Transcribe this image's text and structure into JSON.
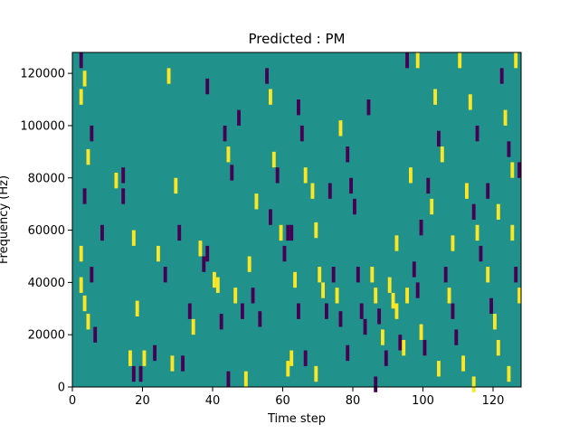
{
  "chart_data": {
    "type": "heatmap",
    "title": "Predicted : PM",
    "xlabel": "Time step",
    "ylabel": "Frequency (Hz)",
    "xlim": [
      0,
      128
    ],
    "ylim": [
      0,
      128000
    ],
    "xticks": [
      0,
      20,
      40,
      60,
      80,
      100,
      120
    ],
    "yticks": [
      0,
      20000,
      40000,
      60000,
      80000,
      100000,
      120000
    ],
    "background_value": 0,
    "colormap": {
      "-1": "#440154",
      "0": "#21918c",
      "1": "#fde725"
    },
    "cells": [
      [
        3,
        119000,
        1
      ],
      [
        2,
        112000,
        1
      ],
      [
        4,
        89000,
        1
      ],
      [
        3,
        74000,
        -1
      ],
      [
        2,
        52000,
        1
      ],
      [
        5,
        44000,
        -1
      ],
      [
        2,
        40000,
        1
      ],
      [
        3,
        33000,
        1
      ],
      [
        4,
        26000,
        1
      ],
      [
        6,
        21000,
        -1
      ],
      [
        2,
        126000,
        -1
      ],
      [
        5,
        98000,
        -1
      ],
      [
        8,
        60000,
        -1
      ],
      [
        12,
        80000,
        1
      ],
      [
        14,
        74000,
        -1
      ],
      [
        17,
        58000,
        1
      ],
      [
        18,
        31000,
        1
      ],
      [
        16,
        12000,
        1
      ],
      [
        17,
        6000,
        -1
      ],
      [
        14,
        82000,
        -1
      ],
      [
        24,
        52000,
        1
      ],
      [
        26,
        44000,
        -1
      ],
      [
        27,
        120000,
        1
      ],
      [
        29,
        78000,
        1
      ],
      [
        31,
        10000,
        -1
      ],
      [
        33,
        30000,
        -1
      ],
      [
        36,
        54000,
        1
      ],
      [
        37,
        48000,
        -1
      ],
      [
        38,
        52000,
        -1
      ],
      [
        40,
        42000,
        1
      ],
      [
        41,
        40000,
        1
      ],
      [
        42,
        26000,
        -1
      ],
      [
        43,
        98000,
        -1
      ],
      [
        44,
        90000,
        1
      ],
      [
        45,
        83000,
        -1
      ],
      [
        46,
        36000,
        1
      ],
      [
        48,
        30000,
        -1
      ],
      [
        50,
        48000,
        1
      ],
      [
        51,
        36000,
        -1
      ],
      [
        53,
        27000,
        -1
      ],
      [
        55,
        120000,
        -1
      ],
      [
        56,
        112000,
        1
      ],
      [
        57,
        88000,
        1
      ],
      [
        58,
        82000,
        -1
      ],
      [
        59,
        60000,
        1
      ],
      [
        60,
        52000,
        -1
      ],
      [
        61,
        8000,
        1
      ],
      [
        62,
        12000,
        1
      ],
      [
        61,
        60000,
        -1
      ],
      [
        62,
        60000,
        -1
      ],
      [
        63,
        42000,
        1
      ],
      [
        64,
        30000,
        -1
      ],
      [
        65,
        98000,
        -1
      ],
      [
        66,
        82000,
        1
      ],
      [
        68,
        76000,
        1
      ],
      [
        69,
        61000,
        1
      ],
      [
        70,
        44000,
        1
      ],
      [
        71,
        38000,
        1
      ],
      [
        72,
        30000,
        -1
      ],
      [
        73,
        76000,
        -1
      ],
      [
        74,
        44000,
        -1
      ],
      [
        75,
        36000,
        1
      ],
      [
        76,
        27000,
        -1
      ],
      [
        78,
        90000,
        -1
      ],
      [
        79,
        78000,
        -1
      ],
      [
        80,
        70000,
        -1
      ],
      [
        81,
        44000,
        -1
      ],
      [
        82,
        30000,
        -1
      ],
      [
        83,
        24000,
        -1
      ],
      [
        85,
        44000,
        1
      ],
      [
        86,
        36000,
        1
      ],
      [
        87,
        28000,
        -1
      ],
      [
        88,
        20000,
        1
      ],
      [
        89,
        12000,
        -1
      ],
      [
        90,
        40000,
        1
      ],
      [
        91,
        34000,
        1
      ],
      [
        92,
        30000,
        1
      ],
      [
        92,
        56000,
        1
      ],
      [
        93,
        18000,
        -1
      ],
      [
        95,
        36000,
        1
      ],
      [
        96,
        82000,
        1
      ],
      [
        97,
        46000,
        -1
      ],
      [
        98,
        38000,
        -1
      ],
      [
        99,
        22000,
        1
      ],
      [
        100,
        16000,
        -1
      ],
      [
        101,
        78000,
        -1
      ],
      [
        102,
        70000,
        1
      ],
      [
        103,
        112000,
        1
      ],
      [
        104,
        96000,
        -1
      ],
      [
        105,
        90000,
        1
      ],
      [
        106,
        44000,
        -1
      ],
      [
        107,
        36000,
        1
      ],
      [
        108,
        30000,
        -1
      ],
      [
        109,
        20000,
        -1
      ],
      [
        111,
        10000,
        1
      ],
      [
        112,
        76000,
        1
      ],
      [
        113,
        110000,
        1
      ],
      [
        114,
        68000,
        -1
      ],
      [
        115,
        60000,
        1
      ],
      [
        116,
        52000,
        -1
      ],
      [
        118,
        44000,
        1
      ],
      [
        119,
        32000,
        -1
      ],
      [
        120,
        26000,
        1
      ],
      [
        121,
        16000,
        1
      ],
      [
        122,
        120000,
        -1
      ],
      [
        123,
        104000,
        1
      ],
      [
        124,
        92000,
        -1
      ],
      [
        125,
        84000,
        1
      ],
      [
        126,
        44000,
        -1
      ],
      [
        127,
        36000,
        1
      ],
      [
        127,
        84000,
        -1
      ],
      [
        126,
        126000,
        1
      ],
      [
        110,
        126000,
        1
      ],
      [
        98,
        126000,
        1
      ],
      [
        95,
        126000,
        -1
      ],
      [
        38,
        116000,
        -1
      ],
      [
        47,
        104000,
        -1
      ],
      [
        19,
        6000,
        -1
      ],
      [
        20,
        12000,
        1
      ],
      [
        23,
        14000,
        -1
      ],
      [
        28,
        10000,
        1
      ],
      [
        34,
        24000,
        1
      ],
      [
        44,
        4000,
        -1
      ],
      [
        49,
        4000,
        1
      ],
      [
        66,
        12000,
        -1
      ],
      [
        69,
        6000,
        1
      ],
      [
        78,
        14000,
        -1
      ],
      [
        86,
        2000,
        -1
      ],
      [
        94,
        16000,
        1
      ],
      [
        104,
        8000,
        1
      ],
      [
        114,
        2000,
        1
      ],
      [
        124,
        6000,
        1
      ],
      [
        30,
        60000,
        -1
      ],
      [
        52,
        72000,
        1
      ],
      [
        56,
        66000,
        -1
      ],
      [
        64,
        108000,
        -1
      ],
      [
        76,
        100000,
        1
      ],
      [
        84,
        108000,
        -1
      ],
      [
        99,
        62000,
        -1
      ],
      [
        108,
        56000,
        1
      ],
      [
        115,
        98000,
        -1
      ],
      [
        118,
        76000,
        -1
      ],
      [
        121,
        68000,
        1
      ],
      [
        125,
        60000,
        1
      ]
    ]
  }
}
